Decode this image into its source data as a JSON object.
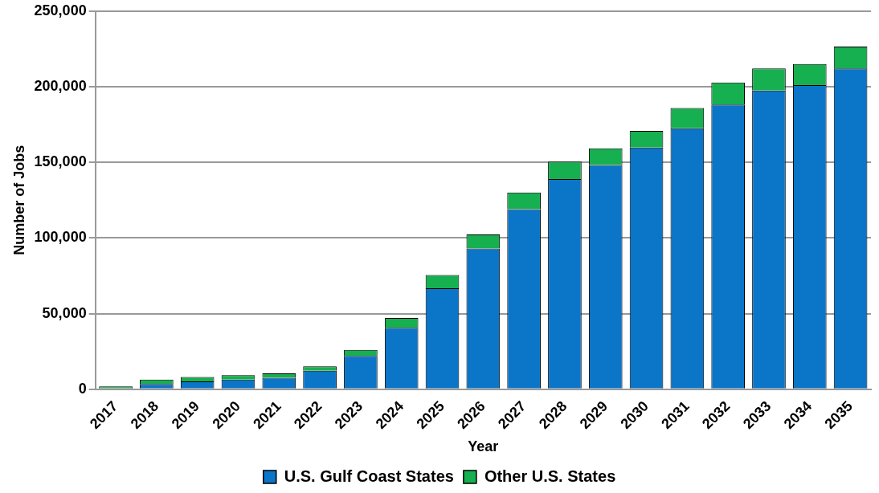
{
  "chart_data": {
    "type": "bar",
    "stacked": true,
    "xlabel": "Year",
    "ylabel": "Number of Jobs",
    "categories": [
      "2017",
      "2018",
      "2019",
      "2020",
      "2021",
      "2022",
      "2023",
      "2024",
      "2025",
      "2026",
      "2027",
      "2028",
      "2029",
      "2030",
      "2031",
      "2032",
      "2033",
      "2034",
      "2035"
    ],
    "series": [
      {
        "name": "U.S. Gulf Coast States",
        "color": "#0b75c8",
        "values": [
          null,
          3500,
          5200,
          6400,
          7600,
          12200,
          22100,
          40700,
          66800,
          93000,
          119100,
          138900,
          148200,
          159800,
          172600,
          188200,
          197500,
          201000,
          212100
        ]
      },
      {
        "name": "Other U.S. States",
        "color": "#16b050",
        "values": [
          1900,
          2900,
          2900,
          2900,
          2900,
          2900,
          4000,
          6400,
          8700,
          9300,
          11000,
          11600,
          11000,
          11000,
          13300,
          14600,
          14600,
          14000,
          14500
        ]
      }
    ],
    "ylim": [
      0,
      250000
    ],
    "yticks": [
      0,
      {
        "value": 50000,
        "label": "50,000"
      },
      {
        "value": 100000,
        "label": "100,000"
      },
      {
        "value": 150000,
        "label": "150,000"
      },
      {
        "value": 200000,
        "label": "200,000"
      },
      {
        "value": 250000,
        "label": "250,000"
      }
    ],
    "grid": "y",
    "legend": "bottom"
  }
}
